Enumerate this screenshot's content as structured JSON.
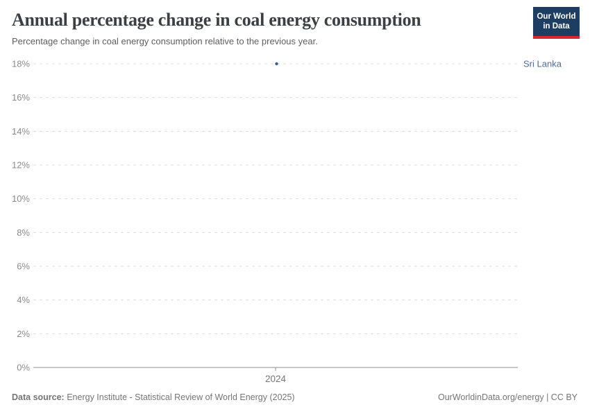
{
  "header": {
    "title": "Annual percentage change in coal energy consumption",
    "subtitle": "Percentage change in coal energy consumption relative to the previous year.",
    "logo": {
      "line1": "Our World",
      "line2": "in Data",
      "bg_color": "#1d3d63",
      "accent_color": "#d7282f",
      "text_color": "#ffffff"
    }
  },
  "chart_data": {
    "type": "scatter",
    "title": "Annual percentage change in coal energy consumption",
    "xlabel": "",
    "ylabel": "",
    "x": [
      2024
    ],
    "xtick_labels": [
      "2024"
    ],
    "series": [
      {
        "name": "Sri Lanka",
        "values": [
          18
        ],
        "label_color": "#4c6a9c",
        "point_color": "#3d5c94"
      }
    ],
    "ylim": [
      0,
      18
    ],
    "ytick_values": [
      0,
      2,
      4,
      6,
      8,
      10,
      12,
      14,
      16,
      18
    ],
    "ytick_labels": [
      "0%",
      "2%",
      "4%",
      "6%",
      "8%",
      "10%",
      "12%",
      "14%",
      "16%",
      "18%"
    ],
    "grid": "horizontal-dashed",
    "legend_position": "right-of-point",
    "gridline_color": "#dcdcdc",
    "axis_color": "#8f8f8f",
    "ytick_label_color": "#8b8b8b",
    "xtick_label_color": "#757575"
  },
  "footer": {
    "source_label": "Data source:",
    "source_text": " Energy Institute - Statistical Review of World Energy (2025)",
    "credit": "OurWorldinData.org/energy | CC BY"
  }
}
